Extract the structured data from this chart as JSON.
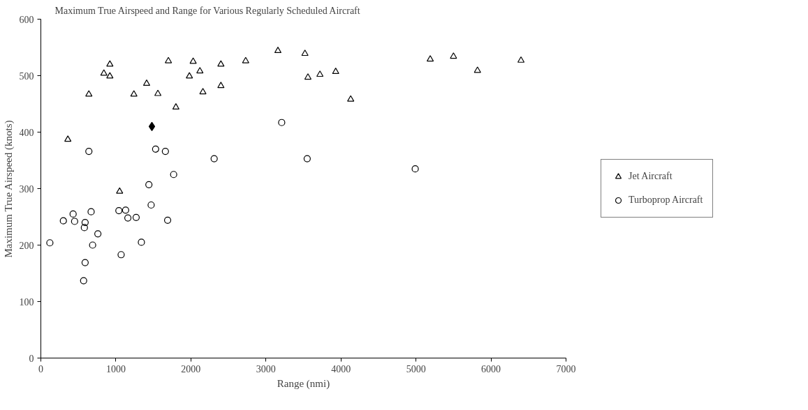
{
  "chart_data": {
    "type": "scatter",
    "title": "Maximum True Airspeed and Range for Various Regularly Scheduled Aircraft",
    "xlabel": "Range (nmi)",
    "ylabel": "Maximum True Airspeed (knots)",
    "xlim": [
      0,
      7000
    ],
    "xticks": [
      0,
      1000,
      2000,
      3000,
      4000,
      5000,
      6000,
      7000
    ],
    "ylim": [
      0,
      600
    ],
    "yticks": [
      0,
      100,
      200,
      300,
      400,
      500,
      600
    ],
    "grid": false,
    "legend": "right",
    "series": [
      {
        "name": "Jet Aircraft",
        "color": "#000000",
        "marker": "triangle",
        "x": [
          360,
          640,
          840,
          920,
          920,
          1240,
          1410,
          1560,
          1700,
          1800,
          1980,
          2030,
          2120,
          2160,
          2400,
          2400,
          2730,
          3160,
          1050,
          3520,
          3560,
          3720,
          3930,
          4130,
          5190,
          5500,
          5820,
          6400
        ],
        "values": [
          387,
          467,
          504,
          520,
          499,
          467,
          486,
          468,
          526,
          444,
          499,
          525,
          508,
          471,
          520,
          482,
          526,
          544,
          295,
          539,
          497,
          502,
          507,
          458,
          529,
          534,
          509,
          527
        ]
      },
      {
        "name": "Turboprop Aircraft",
        "color": "#000000",
        "marker": "circle",
        "x": [
          640,
          1530,
          1660,
          2310,
          3210,
          1770,
          1440,
          3550,
          4990,
          120,
          300,
          430,
          450,
          590,
          580,
          670,
          760,
          690,
          590,
          570,
          1470,
          1040,
          1130,
          1160,
          1270,
          1070,
          1340,
          1690
        ],
        "values": [
          366,
          370,
          366,
          353,
          417,
          325,
          307,
          353,
          335,
          204,
          243,
          255,
          242,
          240,
          231,
          259,
          220,
          200,
          169,
          137,
          271,
          261,
          262,
          248,
          249,
          183,
          205,
          244
        ]
      },
      {
        "color": "#000000",
        "marker": "diamond",
        "x": [
          1480
        ],
        "values": [
          410
        ]
      }
    ]
  }
}
